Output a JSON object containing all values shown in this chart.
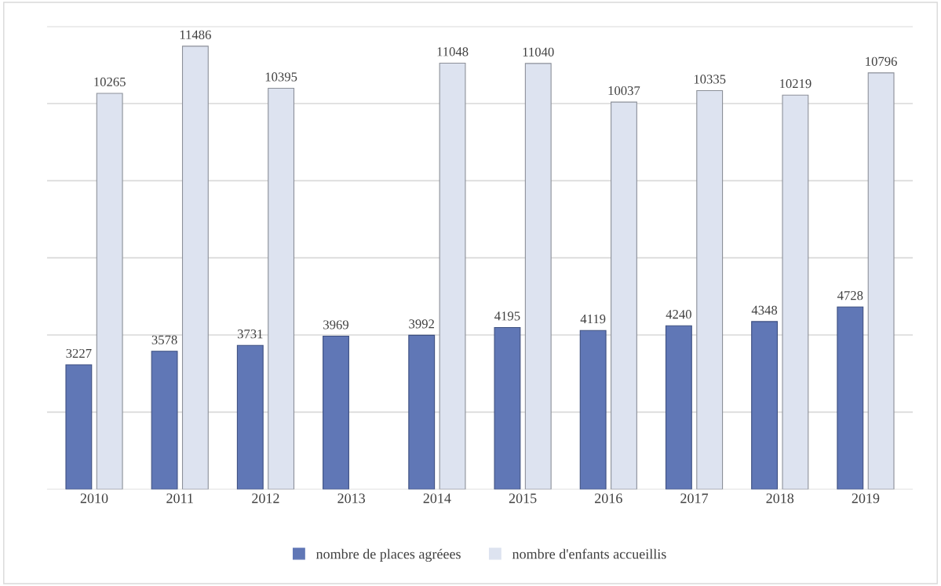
{
  "chart_data": {
    "type": "bar",
    "categories": [
      "2010",
      "2011",
      "2012",
      "2013",
      "2014",
      "2015",
      "2016",
      "2017",
      "2018",
      "2019"
    ],
    "series": [
      {
        "name": "nombre de places agréees",
        "color": "#6077b6",
        "values": [
          3227,
          3578,
          3731,
          3969,
          3992,
          4195,
          4119,
          4240,
          4348,
          4728
        ]
      },
      {
        "name": "nombre d'enfants accueillis",
        "color": "#dde3f0",
        "values": [
          10265,
          11486,
          10395,
          null,
          11048,
          11040,
          10037,
          10335,
          10219,
          10796
        ]
      }
    ],
    "ylim": [
      0,
      12000
    ],
    "yticks": [
      {
        "value": 0,
        "label": null
      },
      {
        "value": 2000,
        "label": null
      },
      {
        "value": 4000,
        "label": null
      },
      {
        "value": 6000,
        "label": null
      },
      {
        "value": 8000,
        "label": null
      },
      {
        "value": 10000,
        "label": null
      },
      {
        "value": 12000,
        "label": null
      }
    ],
    "grid": "y",
    "legend": "bottom",
    "data_labels": true
  }
}
